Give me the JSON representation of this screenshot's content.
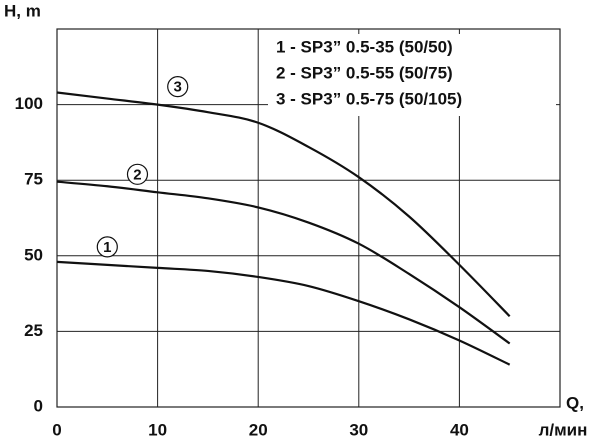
{
  "chart_data": {
    "type": "line",
    "y_label": "H, m",
    "x_label": [
      "Q,",
      "л/мин"
    ],
    "x": [
      0,
      5,
      10,
      15,
      20,
      25,
      30,
      35,
      40,
      45
    ],
    "xlim": [
      0,
      50
    ],
    "xticks": [
      0,
      10,
      20,
      30,
      40
    ],
    "ylim": [
      0,
      125
    ],
    "yticks": [
      0,
      25,
      50,
      75,
      100
    ],
    "grid": true,
    "legend": "top-right",
    "series": [
      {
        "name": "1 - SP3” 0.5-35 (50/50)",
        "label": "1",
        "color": "#111111",
        "values": [
          48,
          47,
          46,
          45,
          43,
          40,
          35,
          29,
          22,
          14
        ]
      },
      {
        "name": "2 - SP3” 0.5-55 (50/75)",
        "label": "2",
        "color": "#111111",
        "values": [
          74.5,
          73,
          71,
          69,
          66,
          61,
          54,
          44,
          33,
          21
        ]
      },
      {
        "name": "3 - SP3” 0.5-75 (50/105)",
        "label": "3",
        "color": "#111111",
        "values": [
          104,
          102,
          100,
          97.5,
          94,
          86,
          76,
          63,
          47,
          30
        ]
      }
    ]
  }
}
